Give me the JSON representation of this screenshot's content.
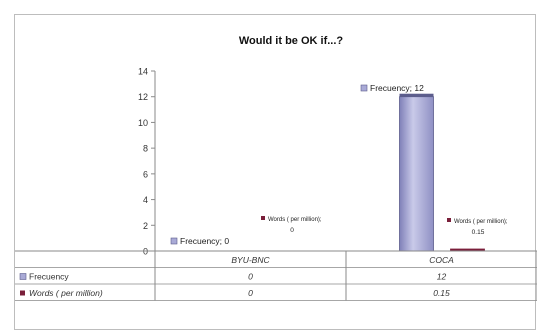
{
  "chart_data": {
    "type": "bar",
    "title": "Would it be OK if...?",
    "categories": [
      "BYU-BNC",
      "COCA"
    ],
    "series": [
      {
        "name": "Frecuency",
        "values": [
          0,
          12
        ],
        "color": "#a9aad6"
      },
      {
        "name": "Words ( per million)",
        "values": [
          0,
          0.15
        ],
        "color": "#7a1f3a"
      }
    ],
    "data_labels": {
      "Frecuency": [
        "Frecuency; 0",
        "Frecuency; 12"
      ],
      "Words ( per million)": [
        "Words ( per million); 0",
        "Words ( per million); 0.15"
      ]
    },
    "data_table": {
      "rows": [
        {
          "label": "Frecuency",
          "values": [
            "0",
            "12"
          ]
        },
        {
          "label": "Words ( per million)",
          "values": [
            "0",
            "0.15"
          ]
        }
      ]
    },
    "ylim": [
      0,
      14
    ],
    "yticks": [
      0,
      2,
      4,
      6,
      8,
      10,
      12,
      14
    ],
    "grid": false,
    "legend": "data-table"
  }
}
